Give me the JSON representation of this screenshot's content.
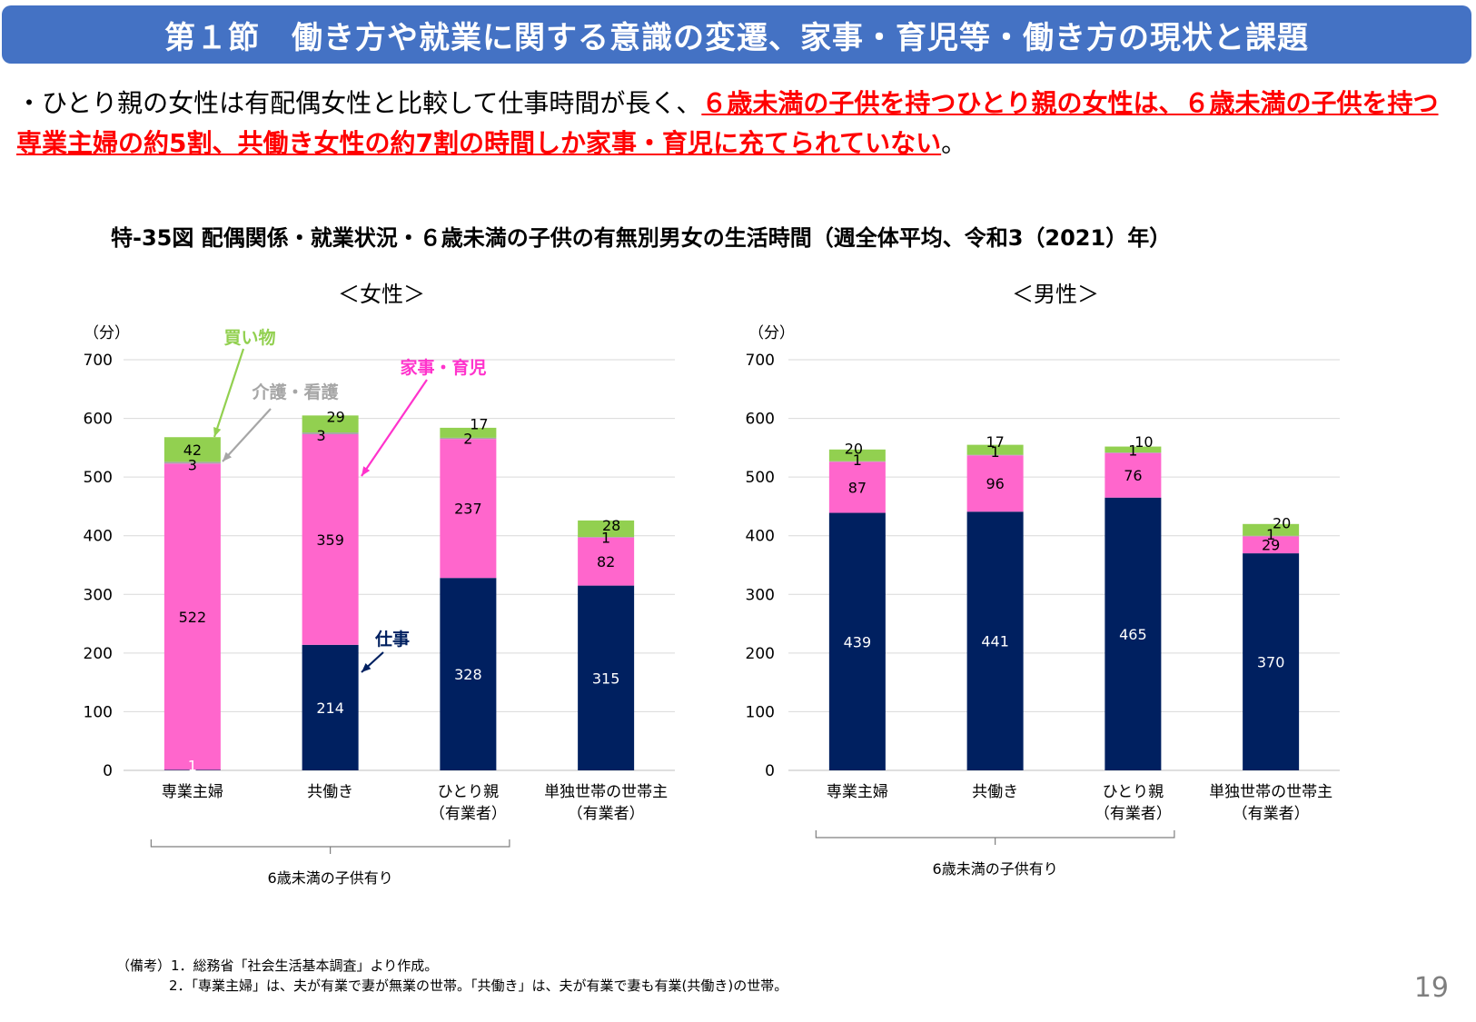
{
  "header": {
    "title": "第１節　働き方や就業に関する意識の変遷、家事・育児等・働き方の現状と課題"
  },
  "summary": {
    "bullet": "・",
    "plain": "ひとり親の女性は有配偶女性と比較して仕事時間が長く、",
    "highlight": "６歳未満の子供を持つひとり親の女性は、６歳未満の子供を持つ専業主婦の約5割、共働き女性の約7割の時間しか家事・育児に充てられていない",
    "end": "。"
  },
  "figure_title": "特-35図 配偶関係・就業状況・６歳未満の子供の有無別男女の生活時間（週全体平均、令和3（2021）年）",
  "chart_data": [
    {
      "type": "bar",
      "stacked": true,
      "title": "＜女性＞",
      "ylabel": "（分）",
      "ylim": [
        0,
        700
      ],
      "yticks": [
        "0",
        "100",
        "200",
        "300",
        "400",
        "500",
        "600",
        "700"
      ],
      "grid": true,
      "categories": [
        {
          "line1": "専業主婦",
          "line2": ""
        },
        {
          "line1": "共働き",
          "line2": ""
        },
        {
          "line1": "ひとり親",
          "line2": "（有業者）"
        },
        {
          "line1": "単独世帯の世帯主",
          "line2": "（有業者）"
        }
      ],
      "series": [
        {
          "name": "仕事",
          "color": "#002060",
          "label_color": "#ffffff",
          "values": [
            1,
            214,
            328,
            315
          ]
        },
        {
          "name": "家事・育児",
          "color": "#ff66cc",
          "label_color": "#000000",
          "values": [
            522,
            359,
            237,
            82
          ]
        },
        {
          "name": "介護・看護",
          "color": "#a6a6a6",
          "label_color": "#000000",
          "values": [
            3,
            3,
            2,
            1
          ]
        },
        {
          "name": "買い物",
          "color": "#92d050",
          "label_color": "#000000",
          "values": [
            42,
            29,
            17,
            28
          ]
        }
      ],
      "annotations": [
        {
          "text": "買い物",
          "color": "#92d050"
        },
        {
          "text": "介護・看護",
          "color": "#a6a6a6"
        },
        {
          "text": "家事・育児",
          "color": "#ff33cc"
        },
        {
          "text": "仕事",
          "color": "#002060"
        }
      ],
      "bracket_label": "6歳未満の子供有り"
    },
    {
      "type": "bar",
      "stacked": true,
      "title": "＜男性＞",
      "ylabel": "（分）",
      "ylim": [
        0,
        700
      ],
      "yticks": [
        "0",
        "100",
        "200",
        "300",
        "400",
        "500",
        "600",
        "700"
      ],
      "grid": true,
      "categories": [
        {
          "line1": "専業主婦",
          "line2": ""
        },
        {
          "line1": "共働き",
          "line2": ""
        },
        {
          "line1": "ひとり親",
          "line2": "（有業者）"
        },
        {
          "line1": "単独世帯の世帯主",
          "line2": "（有業者）"
        }
      ],
      "series": [
        {
          "name": "仕事",
          "color": "#002060",
          "label_color": "#ffffff",
          "values": [
            439,
            441,
            465,
            370
          ]
        },
        {
          "name": "家事・育児",
          "color": "#ff66cc",
          "label_color": "#000000",
          "values": [
            87,
            96,
            76,
            29
          ]
        },
        {
          "name": "介護・看護",
          "color": "#a6a6a6",
          "label_color": "#000000",
          "values": [
            1,
            1,
            1,
            1
          ]
        },
        {
          "name": "買い物",
          "color": "#92d050",
          "label_color": "#000000",
          "values": [
            20,
            17,
            10,
            20
          ]
        }
      ],
      "bracket_label": "6歳未満の子供有り"
    }
  ],
  "notes": {
    "line1": "（備考）1．総務省「社会生活基本調査」より作成。",
    "line2": "2．「専業主婦」は、夫が有業で妻が無業の世帯。「共働き」は、夫が有業で妻も有業(共働き)の世帯。"
  },
  "page_number": "19"
}
